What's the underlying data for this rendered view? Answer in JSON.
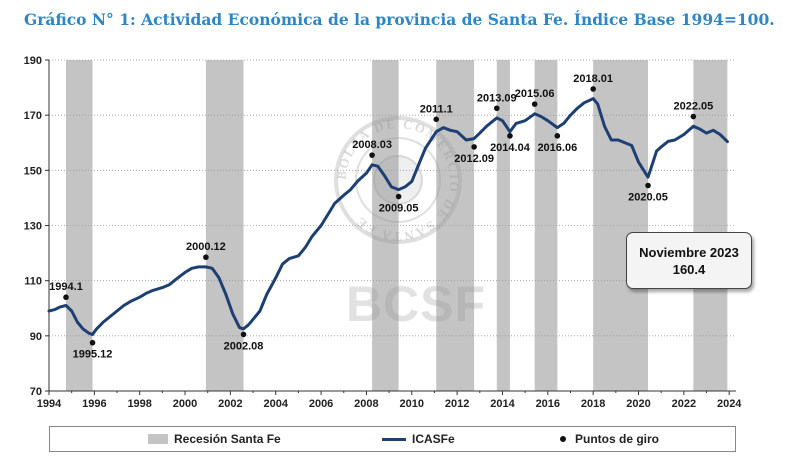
{
  "title": "Gráfico N° 1: Actividad Económica de la provincia de Santa Fe. Índice Base 1994=100.",
  "annotation": {
    "line1": "Noviembre 2023",
    "line2": "160.4"
  },
  "watermark": {
    "text": "BCSF",
    "seal_text": "BOLSA DE COMERCIO DE SANTA FE"
  },
  "legend": {
    "recession": "Recesión Santa Fe",
    "series": "ICASFe",
    "points": "Puntos de giro"
  },
  "colors": {
    "title": "#2f86c4",
    "line": "#1d3f72",
    "recession": "#c4c4c4"
  },
  "chart_data": {
    "type": "line",
    "xlim": [
      1994,
      2024.3
    ],
    "ylim": [
      70,
      190
    ],
    "yticks": [
      70,
      90,
      110,
      130,
      150,
      170,
      190
    ],
    "xticks": [
      1994,
      1996,
      1998,
      2000,
      2002,
      2004,
      2006,
      2008,
      2010,
      2012,
      2014,
      2016,
      2018,
      2020,
      2022,
      2024
    ],
    "grid": "horizontal",
    "legend": "bottom",
    "recessions": [
      [
        1994.75,
        1995.92
      ],
      [
        2000.92,
        2002.58
      ],
      [
        2008.25,
        2009.42
      ],
      [
        2011.08,
        2012.75
      ],
      [
        2013.75,
        2014.33
      ],
      [
        2015.42,
        2016.42
      ],
      [
        2018.0,
        2020.42
      ],
      [
        2022.42,
        2023.92
      ]
    ],
    "turning_points": [
      {
        "label": "1994.1",
        "x": 1994.75,
        "y": 104,
        "label_pos": "above"
      },
      {
        "label": "1995.12",
        "x": 1995.92,
        "y": 87.5,
        "label_pos": "below"
      },
      {
        "label": "2000.12",
        "x": 2000.92,
        "y": 118.5,
        "label_pos": "above"
      },
      {
        "label": "2002.08",
        "x": 2002.58,
        "y": 90.5,
        "label_pos": "below"
      },
      {
        "label": "2008.03",
        "x": 2008.25,
        "y": 155.5,
        "label_pos": "above"
      },
      {
        "label": "2009.05",
        "x": 2009.42,
        "y": 140.5,
        "label_pos": "below"
      },
      {
        "label": "2011.1",
        "x": 2011.08,
        "y": 168.5,
        "label_pos": "above"
      },
      {
        "label": "2012.09",
        "x": 2012.75,
        "y": 158.5,
        "label_pos": "below"
      },
      {
        "label": "2013.09",
        "x": 2013.75,
        "y": 172.5,
        "label_pos": "above"
      },
      {
        "label": "2014.04",
        "x": 2014.33,
        "y": 162.5,
        "label_pos": "below"
      },
      {
        "label": "2015.06",
        "x": 2015.42,
        "y": 174,
        "label_pos": "above"
      },
      {
        "label": "2016.06",
        "x": 2016.42,
        "y": 162.5,
        "label_pos": "below"
      },
      {
        "label": "2018.01",
        "x": 2018.0,
        "y": 179.5,
        "label_pos": "above"
      },
      {
        "label": "2020.05",
        "x": 2020.42,
        "y": 144.5,
        "label_pos": "below"
      },
      {
        "label": "2022.05",
        "x": 2022.42,
        "y": 169.5,
        "label_pos": "above"
      }
    ],
    "series": [
      {
        "name": "ICASFe",
        "x": [
          1994.0,
          1994.25,
          1994.5,
          1994.75,
          1995.0,
          1995.25,
          1995.5,
          1995.75,
          1995.92,
          1996.1,
          1996.4,
          1996.7,
          1997.0,
          1997.3,
          1997.6,
          1998.0,
          1998.3,
          1998.6,
          1999.0,
          1999.3,
          1999.6,
          2000.0,
          2000.3,
          2000.6,
          2000.92,
          2001.2,
          2001.5,
          2001.8,
          2002.1,
          2002.4,
          2002.58,
          2002.8,
          2003.0,
          2003.3,
          2003.6,
          2004.0,
          2004.3,
          2004.6,
          2005.0,
          2005.3,
          2005.6,
          2006.0,
          2006.3,
          2006.6,
          2007.0,
          2007.3,
          2007.6,
          2008.0,
          2008.25,
          2008.5,
          2008.8,
          2009.1,
          2009.42,
          2009.7,
          2010.0,
          2010.3,
          2010.6,
          2011.08,
          2011.4,
          2011.7,
          2012.0,
          2012.4,
          2012.75,
          2013.0,
          2013.3,
          2013.75,
          2014.0,
          2014.33,
          2014.6,
          2015.0,
          2015.42,
          2015.7,
          2016.0,
          2016.42,
          2016.7,
          2017.0,
          2017.3,
          2017.6,
          2018.0,
          2018.2,
          2018.5,
          2018.8,
          2019.1,
          2019.4,
          2019.7,
          2020.0,
          2020.42,
          2020.6,
          2020.8,
          2021.0,
          2021.3,
          2021.6,
          2022.0,
          2022.42,
          2022.7,
          2023.0,
          2023.3,
          2023.6,
          2023.92
        ],
        "values": [
          99,
          99.5,
          100.5,
          101,
          99,
          95,
          92.5,
          91,
          90.5,
          92.5,
          95,
          97,
          99,
          101,
          102.5,
          104,
          105.5,
          106.5,
          107.5,
          108.5,
          110.5,
          113,
          114.5,
          115,
          115,
          114.5,
          111,
          105,
          98,
          93,
          92.5,
          94,
          96,
          99,
          105,
          111,
          116,
          118,
          119,
          122,
          126,
          130,
          134,
          138,
          141,
          143,
          146,
          149,
          152,
          151.5,
          148,
          144,
          143,
          144,
          146,
          152,
          158,
          164,
          165.5,
          164.5,
          164,
          161,
          161.5,
          163.5,
          166,
          169,
          168,
          164,
          167,
          168,
          170.5,
          169.5,
          168,
          165.5,
          167,
          170,
          172.5,
          174.5,
          176,
          174,
          166,
          161,
          161,
          160,
          159,
          153,
          147.5,
          152,
          157,
          158.5,
          160.5,
          161,
          163,
          166,
          165,
          163.5,
          164.5,
          163,
          160.4
        ]
      }
    ]
  }
}
